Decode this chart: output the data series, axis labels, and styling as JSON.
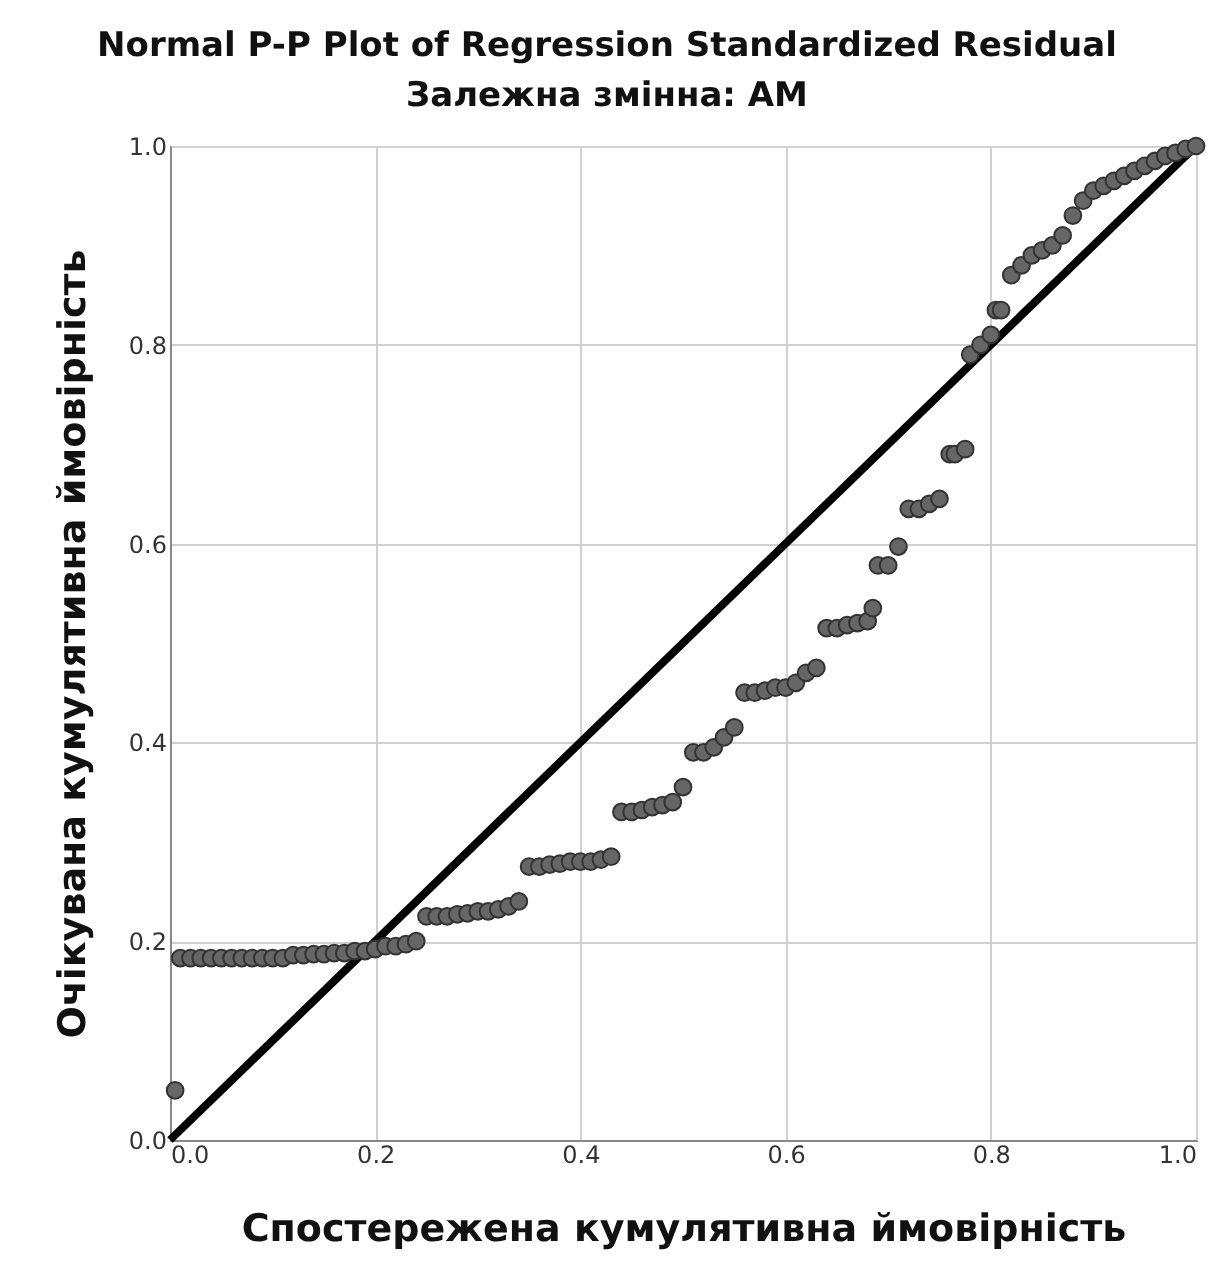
{
  "chart_data": {
    "type": "scatter",
    "title": "Normal P-P Plot of Regression Standardized Residual",
    "subtitle": "Залежна змінна: АМ",
    "xlabel": "Спостережена кумулятивна ймовірність",
    "ylabel": "Очікувана кумулятивна ймовірність",
    "xlim": [
      0,
      1
    ],
    "ylim": [
      0,
      1
    ],
    "xticks": [
      {
        "value": 0,
        "label": "0.0"
      },
      {
        "value": 0.2,
        "label": "0.2"
      },
      {
        "value": 0.4,
        "label": "0.4"
      },
      {
        "value": 0.6,
        "label": "0.6"
      },
      {
        "value": 0.8,
        "label": "0.8"
      },
      {
        "value": 1,
        "label": "1.0"
      }
    ],
    "yticks": [
      {
        "value": 0,
        "label": "0.0"
      },
      {
        "value": 0.2,
        "label": "0.2"
      },
      {
        "value": 0.4,
        "label": "0.4"
      },
      {
        "value": 0.6,
        "label": "0.6"
      },
      {
        "value": 0.8,
        "label": "0.8"
      },
      {
        "value": 1,
        "label": "1.0"
      }
    ],
    "grid": true,
    "marker": "circle",
    "series": [
      {
        "type": "line",
        "marker": "none",
        "color": "#000000",
        "x": [
          0,
          1
        ],
        "values": [
          0,
          1
        ]
      },
      {
        "color": "#666666",
        "x": [
          0.005,
          0.01,
          0.02,
          0.03,
          0.04,
          0.05,
          0.06,
          0.07,
          0.08,
          0.09,
          0.1,
          0.11,
          0.12,
          0.13,
          0.14,
          0.15,
          0.16,
          0.17,
          0.18,
          0.19,
          0.2,
          0.21,
          0.22,
          0.23,
          0.24,
          0.25,
          0.26,
          0.27,
          0.28,
          0.29,
          0.3,
          0.31,
          0.32,
          0.33,
          0.34,
          0.35,
          0.36,
          0.37,
          0.38,
          0.39,
          0.4,
          0.41,
          0.42,
          0.43,
          0.44,
          0.45,
          0.46,
          0.47,
          0.48,
          0.49,
          0.5,
          0.51,
          0.52,
          0.53,
          0.54,
          0.55,
          0.56,
          0.57,
          0.58,
          0.59,
          0.6,
          0.61,
          0.62,
          0.63,
          0.64,
          0.65,
          0.66,
          0.67,
          0.68,
          0.685,
          0.69,
          0.7,
          0.71,
          0.72,
          0.73,
          0.74,
          0.75,
          0.76,
          0.765,
          0.775,
          0.78,
          0.79,
          0.8,
          0.805,
          0.81,
          0.82,
          0.83,
          0.84,
          0.85,
          0.86,
          0.87,
          0.88,
          0.89,
          0.9,
          0.91,
          0.92,
          0.93,
          0.94,
          0.95,
          0.96,
          0.97,
          0.98,
          0.99,
          1.0
        ],
        "values": [
          0.05,
          0.183,
          0.183,
          0.183,
          0.183,
          0.183,
          0.183,
          0.183,
          0.183,
          0.183,
          0.183,
          0.183,
          0.186,
          0.186,
          0.187,
          0.187,
          0.188,
          0.188,
          0.19,
          0.19,
          0.192,
          0.195,
          0.195,
          0.197,
          0.2,
          0.225,
          0.225,
          0.225,
          0.227,
          0.228,
          0.23,
          0.23,
          0.232,
          0.235,
          0.24,
          0.275,
          0.275,
          0.277,
          0.278,
          0.28,
          0.28,
          0.28,
          0.282,
          0.285,
          0.33,
          0.33,
          0.332,
          0.335,
          0.337,
          0.34,
          0.355,
          0.39,
          0.39,
          0.395,
          0.405,
          0.415,
          0.45,
          0.45,
          0.452,
          0.455,
          0.455,
          0.46,
          0.47,
          0.475,
          0.515,
          0.515,
          0.518,
          0.52,
          0.522,
          0.535,
          0.578,
          0.578,
          0.597,
          0.635,
          0.635,
          0.64,
          0.645,
          0.69,
          0.69,
          0.695,
          0.79,
          0.8,
          0.81,
          0.835,
          0.835,
          0.87,
          0.88,
          0.89,
          0.895,
          0.9,
          0.91,
          0.93,
          0.945,
          0.955,
          0.96,
          0.965,
          0.97,
          0.975,
          0.98,
          0.985,
          0.99,
          0.993,
          0.997,
          1.0
        ]
      }
    ]
  }
}
